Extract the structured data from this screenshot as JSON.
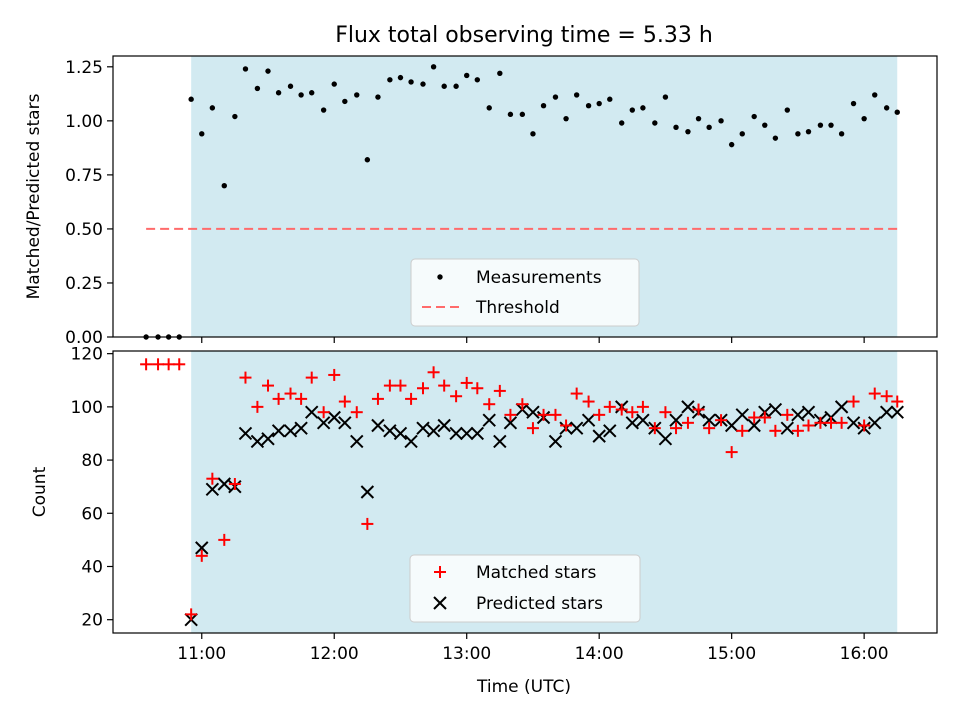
{
  "title": "Flux total observing time = 5.33 h",
  "colors": {
    "shade": "#add8e6",
    "measure": "#000000",
    "threshold": "#ff6b6b",
    "matched": "#ff0000",
    "predicted": "#000000"
  },
  "chart_data": [
    {
      "type": "scatter",
      "ylabel": "Matched/Predicted stars",
      "ylim": [
        0,
        1.3
      ],
      "xlim": [
        10.33,
        16.55
      ],
      "yticks": [
        0,
        0.25,
        0.5,
        0.75,
        1.0,
        1.25
      ],
      "ytick_labels": [
        "0.00",
        "0.25",
        "0.50",
        "0.75",
        "1.00",
        "1.25"
      ],
      "legend": {
        "placement": "lower-center",
        "measurements": "Measurements",
        "threshold": "Threshold"
      },
      "shaded_span": [
        10.92,
        16.25
      ],
      "threshold": {
        "value": 0.5,
        "x": [
          10.58,
          16.27
        ]
      },
      "measurements": {
        "x": [
          10.58,
          10.67,
          10.75,
          10.83,
          10.92,
          11.0,
          11.08,
          11.17,
          11.25,
          11.33,
          11.42,
          11.5,
          11.58,
          11.67,
          11.75,
          11.83,
          11.92,
          12.0,
          12.08,
          12.17,
          12.25,
          12.33,
          12.42,
          12.5,
          12.58,
          12.67,
          12.75,
          12.83,
          12.92,
          13.0,
          13.08,
          13.17,
          13.25,
          13.33,
          13.42,
          13.5,
          13.58,
          13.67,
          13.75,
          13.83,
          13.92,
          14.0,
          14.08,
          14.17,
          14.25,
          14.33,
          14.42,
          14.5,
          14.58,
          14.67,
          14.75,
          14.83,
          14.92,
          15.0,
          15.08,
          15.17,
          15.25,
          15.33,
          15.42,
          15.5,
          15.58,
          15.67,
          15.75,
          15.83,
          15.92,
          16.0,
          16.08,
          16.17,
          16.25
        ],
        "y": [
          0.0,
          0.0,
          0.0,
          0.0,
          1.1,
          0.94,
          1.06,
          0.7,
          1.02,
          1.24,
          1.15,
          1.23,
          1.13,
          1.16,
          1.12,
          1.13,
          1.05,
          1.17,
          1.09,
          1.12,
          0.82,
          1.11,
          1.19,
          1.2,
          1.18,
          1.17,
          1.25,
          1.16,
          1.16,
          1.21,
          1.19,
          1.06,
          1.22,
          1.03,
          1.03,
          0.94,
          1.07,
          1.11,
          1.01,
          1.12,
          1.07,
          1.08,
          1.1,
          0.99,
          1.05,
          1.06,
          0.99,
          1.11,
          0.97,
          0.95,
          1.01,
          0.97,
          1.0,
          0.89,
          0.94,
          1.02,
          0.98,
          0.92,
          1.05,
          0.94,
          0.95,
          0.98,
          0.98,
          0.94,
          1.08,
          1.01,
          1.12,
          1.06,
          1.04
        ]
      }
    },
    {
      "type": "scatter",
      "ylabel": "Count",
      "xlabel": "Time (UTC)",
      "ylim": [
        15,
        121
      ],
      "xlim": [
        10.33,
        16.55
      ],
      "yticks": [
        20,
        40,
        60,
        80,
        100,
        120
      ],
      "ytick_labels": [
        "20",
        "40",
        "60",
        "80",
        "100",
        "120"
      ],
      "xticks": [
        11,
        12,
        13,
        14,
        15,
        16
      ],
      "xtick_labels": [
        "11:00",
        "12:00",
        "13:00",
        "14:00",
        "15:00",
        "16:00"
      ],
      "legend": {
        "placement": "lower-center",
        "matched": "Matched stars",
        "predicted": "Predicted stars"
      },
      "shaded_span": [
        10.92,
        16.25
      ],
      "x": [
        10.58,
        10.67,
        10.75,
        10.83,
        10.92,
        11.0,
        11.08,
        11.17,
        11.25,
        11.33,
        11.42,
        11.5,
        11.58,
        11.67,
        11.75,
        11.83,
        11.92,
        12.0,
        12.08,
        12.17,
        12.25,
        12.33,
        12.42,
        12.5,
        12.58,
        12.67,
        12.75,
        12.83,
        12.92,
        13.0,
        13.08,
        13.17,
        13.25,
        13.33,
        13.42,
        13.5,
        13.58,
        13.67,
        13.75,
        13.83,
        13.92,
        14.0,
        14.08,
        14.17,
        14.25,
        14.33,
        14.42,
        14.5,
        14.58,
        14.67,
        14.75,
        14.83,
        14.92,
        15.0,
        15.08,
        15.17,
        15.25,
        15.33,
        15.42,
        15.5,
        15.58,
        15.67,
        15.75,
        15.83,
        15.92,
        16.0,
        16.08,
        16.17,
        16.25
      ],
      "matched": [
        116,
        116,
        116,
        116,
        22,
        44,
        73,
        50,
        71,
        111,
        100,
        108,
        103,
        105,
        103,
        111,
        98,
        112,
        102,
        98,
        56,
        103,
        108,
        108,
        103,
        107,
        113,
        108,
        104,
        109,
        107,
        101,
        106,
        97,
        101,
        92,
        97,
        97,
        93,
        105,
        102,
        97,
        100,
        99,
        98,
        100,
        92,
        98,
        92,
        94,
        99,
        92,
        95,
        83,
        91,
        96,
        96,
        91,
        97,
        91,
        93,
        94,
        94,
        94,
        102,
        93,
        105,
        104,
        102
      ],
      "predicted": [
        null,
        null,
        null,
        null,
        20,
        47,
        69,
        71,
        70,
        90,
        87,
        88,
        91,
        91,
        92,
        98,
        94,
        96,
        94,
        87,
        68,
        93,
        91,
        90,
        87,
        92,
        91,
        93,
        90,
        90,
        90,
        95,
        87,
        94,
        99,
        98,
        96,
        87,
        92,
        92,
        95,
        89,
        91,
        100,
        94,
        95,
        92,
        88,
        95,
        100,
        98,
        95,
        95,
        93,
        97,
        93,
        98,
        99,
        92,
        97,
        98,
        95,
        96,
        100,
        94,
        92,
        94,
        98,
        98
      ]
    }
  ]
}
